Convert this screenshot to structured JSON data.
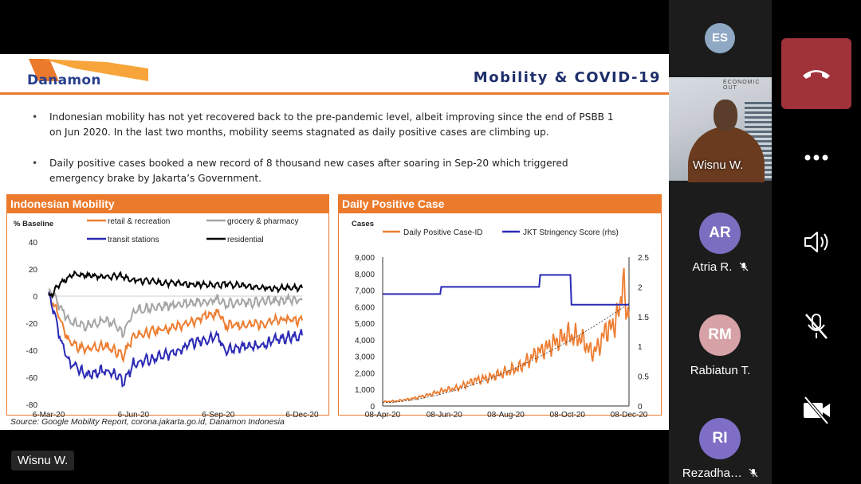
{
  "slide": {
    "logo_text": "Danamon",
    "title": "Mobility & COVID-19",
    "bullets": [
      "Indonesian mobility has not yet recovered back to the pre-pandemic level, albeit improving since the end of PSBB 1 on Jun 2020. In the last two months, mobility seems stagnated as daily positive cases are climbing up.",
      "Daily positive cases booked a new record of 8 thousand new cases after soaring in Sep-20 which triggered emergency brake by Jakarta’s Government."
    ],
    "source": "Source: Google Mobility Report, corona.jakarta.go.id, Danamon Indonesia"
  },
  "chart_data": [
    {
      "type": "line",
      "title": "Indonesian Mobility",
      "ylabel": "% Baseline",
      "ylim": [
        -80,
        40
      ],
      "yticks": [
        "40",
        "20",
        "0",
        "-20",
        "-40",
        "-60",
        "-80"
      ],
      "xticks": [
        "6-Mar-20",
        "6-Jun-20",
        "6-Sep-20",
        "6-Dec-20"
      ],
      "legend": "top",
      "series": [
        {
          "name": "retail & recreation",
          "color": "#ed7d31",
          "x": [
            "2020-03-06",
            "2020-03-10",
            "2020-03-20",
            "2020-03-27",
            "2020-04-03",
            "2020-04-17",
            "2020-04-24",
            "2020-05-08",
            "2020-05-22",
            "2020-05-25",
            "2020-06-06",
            "2020-06-20",
            "2020-07-04",
            "2020-07-20",
            "2020-08-06",
            "2020-08-20",
            "2020-09-06",
            "2020-09-14",
            "2020-09-28",
            "2020-10-12",
            "2020-10-26",
            "2020-11-09",
            "2020-11-23",
            "2020-12-06"
          ],
          "values": [
            0,
            -3,
            -20,
            -32,
            -36,
            -40,
            -38,
            -37,
            -42,
            -45,
            -30,
            -27,
            -25,
            -23,
            -20,
            -15,
            -12,
            -22,
            -21,
            -21,
            -20,
            -18,
            -17,
            -18
          ]
        },
        {
          "name": "grocery & pharmacy",
          "color": "#a5a5a5",
          "x": [
            "2020-03-06",
            "2020-03-10",
            "2020-03-20",
            "2020-03-27",
            "2020-04-03",
            "2020-04-17",
            "2020-05-08",
            "2020-05-22",
            "2020-05-25",
            "2020-06-06",
            "2020-06-20",
            "2020-07-04",
            "2020-08-06",
            "2020-09-06",
            "2020-09-14",
            "2020-09-28",
            "2020-10-26",
            "2020-11-23",
            "2020-12-06"
          ],
          "values": [
            0,
            3,
            -10,
            -18,
            -20,
            -22,
            -18,
            -24,
            -28,
            -12,
            -9,
            -8,
            -5,
            -2,
            -6,
            -5,
            -4,
            -3,
            -3
          ]
        },
        {
          "name": "transit stations",
          "color": "#2b2ab5",
          "x": [
            "2020-03-06",
            "2020-03-10",
            "2020-03-20",
            "2020-03-27",
            "2020-04-03",
            "2020-04-17",
            "2020-05-08",
            "2020-05-22",
            "2020-05-25",
            "2020-06-06",
            "2020-06-20",
            "2020-07-04",
            "2020-07-20",
            "2020-08-06",
            "2020-09-06",
            "2020-09-14",
            "2020-09-28",
            "2020-10-26",
            "2020-11-09",
            "2020-11-23",
            "2020-12-06"
          ],
          "values": [
            0,
            -8,
            -35,
            -48,
            -52,
            -58,
            -55,
            -60,
            -65,
            -50,
            -47,
            -45,
            -42,
            -35,
            -30,
            -40,
            -38,
            -36,
            -32,
            -30,
            -29
          ]
        },
        {
          "name": "residential",
          "color": "#000000",
          "x": [
            "2020-03-06",
            "2020-03-10",
            "2020-03-20",
            "2020-03-27",
            "2020-04-03",
            "2020-04-17",
            "2020-05-08",
            "2020-05-22",
            "2020-06-06",
            "2020-07-04",
            "2020-08-06",
            "2020-09-06",
            "2020-09-14",
            "2020-10-12",
            "2020-11-09",
            "2020-12-06"
          ],
          "values": [
            0,
            2,
            10,
            14,
            16,
            15,
            14,
            15,
            12,
            10,
            9,
            8,
            9,
            7,
            6,
            6
          ]
        }
      ]
    },
    {
      "type": "line",
      "title": "Daily Positive Case",
      "ylabel": "Cases",
      "ylim": [
        0,
        9000
      ],
      "yticks": [
        "9,000",
        "8,000",
        "7,000",
        "6,000",
        "5,000",
        "4,000",
        "3,000",
        "2,000",
        "1,000",
        "0"
      ],
      "y2lim": [
        0,
        2.5
      ],
      "y2ticks": [
        "2.5",
        "2",
        "1.5",
        "1",
        "0.5",
        "0"
      ],
      "xticks": [
        "08-Apr-20",
        "08-Jun-20",
        "08-Aug-20",
        "08-Oct-20",
        "08-Dec-20"
      ],
      "legend": "top",
      "series": [
        {
          "name": "Daily Positive Case-ID",
          "color": "#ed7d31",
          "axis": "left",
          "x": [
            "2020-04-08",
            "2020-04-22",
            "2020-05-08",
            "2020-05-22",
            "2020-06-08",
            "2020-06-22",
            "2020-07-08",
            "2020-07-22",
            "2020-08-08",
            "2020-08-22",
            "2020-09-08",
            "2020-09-22",
            "2020-10-08",
            "2020-10-22",
            "2020-11-01",
            "2020-11-08",
            "2020-11-15",
            "2020-11-22",
            "2020-11-29",
            "2020-12-02",
            "2020-12-04",
            "2020-12-06",
            "2020-12-08"
          ],
          "values": [
            250,
            300,
            450,
            650,
            950,
            1100,
            1550,
            1700,
            2050,
            2350,
            3200,
            3700,
            4300,
            4100,
            3200,
            3600,
            4600,
            4800,
            5800,
            8300,
            6000,
            5400,
            6100
          ]
        },
        {
          "name": "JKT Stringency Score (rhs)",
          "color": "#2b2ab5",
          "axis": "right",
          "step": true,
          "x": [
            "2020-04-08",
            "2020-06-04",
            "2020-06-05",
            "2020-09-10",
            "2020-09-11",
            "2020-10-11",
            "2020-10-12",
            "2020-12-08"
          ],
          "values": [
            1.88,
            1.88,
            2.0,
            2.0,
            2.2,
            2.2,
            1.7,
            1.7
          ]
        }
      ]
    }
  ],
  "sidebar": {
    "participants": [
      {
        "initials": "ES",
        "name": "",
        "avatar_color": "#8fa8c4"
      },
      {
        "initials": "",
        "name": "Wisnu W.",
        "video": true
      },
      {
        "initials": "AR",
        "name": "Atria R.",
        "avatar_color": "#7b6ec0",
        "muted": true
      },
      {
        "initials": "RM",
        "name": "Rabiatun T.",
        "avatar_color": "#d6a2a8",
        "muted": false
      },
      {
        "initials": "RI",
        "name": "Rezadha…",
        "avatar_color": "#7e6ec5",
        "muted": true
      }
    ]
  },
  "speaker_name": "Wisnu W.",
  "controls": {
    "end_call_icon": "end-call-icon",
    "more_icon": "more-icon",
    "speaker_icon": "speaker-icon",
    "mic_icon": "mic-off-icon",
    "camera_icon": "camera-off-icon"
  },
  "video_backdrop_text": "ECONOMIC OUT"
}
